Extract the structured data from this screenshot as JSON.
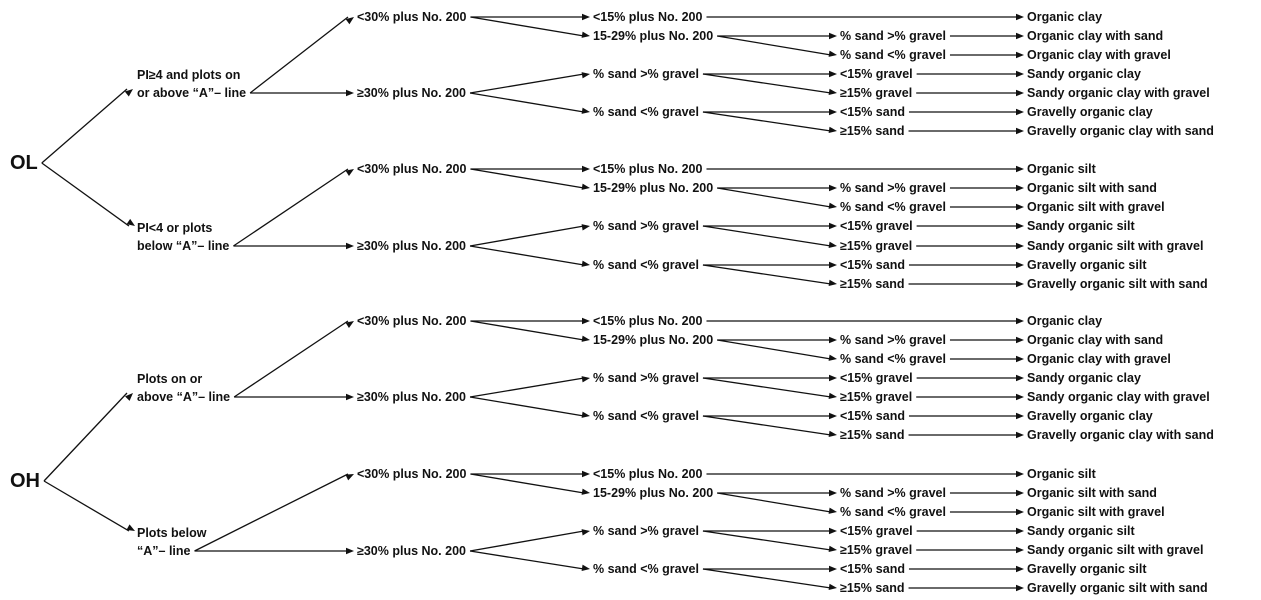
{
  "diagram": {
    "nodes": [
      {
        "id": "OL",
        "text": "OL"
      },
      {
        "id": "OH",
        "text": "OH"
      },
      {
        "id": "a1",
        "text": "PI≥4 and plots on"
      },
      {
        "id": "a1b",
        "text": "or above “A”– line"
      },
      {
        "id": "a2",
        "text": "PI<4 or plots"
      },
      {
        "id": "a2b",
        "text": "below “A”– line"
      },
      {
        "id": "a3",
        "text": "Plots on or"
      },
      {
        "id": "a3b",
        "text": "above “A”– line"
      },
      {
        "id": "a4",
        "text": "Plots below"
      },
      {
        "id": "a4b",
        "text": "“A”– line"
      },
      {
        "id": "b1",
        "text": "<30% plus No. 200"
      },
      {
        "id": "b2",
        "text": "≥30% plus No. 200"
      },
      {
        "id": "b3",
        "text": "<30% plus No. 200"
      },
      {
        "id": "b4",
        "text": "≥30% plus No. 200"
      },
      {
        "id": "b5",
        "text": "<30% plus No. 200"
      },
      {
        "id": "b6",
        "text": "≥30% plus No. 200"
      },
      {
        "id": "b7",
        "text": "<30% plus No. 200"
      },
      {
        "id": "b8",
        "text": "≥30% plus No. 200"
      },
      {
        "id": "c1",
        "text": "<15% plus No. 200"
      },
      {
        "id": "c2",
        "text": "15-29% plus No. 200"
      },
      {
        "id": "c3",
        "text": "% sand >% gravel"
      },
      {
        "id": "c4",
        "text": "% sand <% gravel"
      },
      {
        "id": "c5",
        "text": "<15% plus No. 200"
      },
      {
        "id": "c6",
        "text": "15-29% plus No. 200"
      },
      {
        "id": "c7",
        "text": "% sand >% gravel"
      },
      {
        "id": "c8",
        "text": "% sand <% gravel"
      },
      {
        "id": "c9",
        "text": "<15% plus No. 200"
      },
      {
        "id": "c10",
        "text": "15-29% plus No. 200"
      },
      {
        "id": "c11",
        "text": "% sand >% gravel"
      },
      {
        "id": "c12",
        "text": "% sand <% gravel"
      },
      {
        "id": "c13",
        "text": "<15% plus No. 200"
      },
      {
        "id": "c14",
        "text": "15-29% plus No. 200"
      },
      {
        "id": "c15",
        "text": "% sand >% gravel"
      },
      {
        "id": "c16",
        "text": "% sand <% gravel"
      },
      {
        "id": "d1",
        "text": "% sand >% gravel"
      },
      {
        "id": "d2",
        "text": "% sand <% gravel"
      },
      {
        "id": "d3",
        "text": "<15% gravel"
      },
      {
        "id": "d4",
        "text": "≥15% gravel"
      },
      {
        "id": "d5",
        "text": "<15% sand"
      },
      {
        "id": "d6",
        "text": "≥15% sand"
      },
      {
        "id": "d7",
        "text": "% sand >% gravel"
      },
      {
        "id": "d8",
        "text": "% sand <% gravel"
      },
      {
        "id": "d9",
        "text": "<15% gravel"
      },
      {
        "id": "d10",
        "text": "≥15% gravel"
      },
      {
        "id": "d11",
        "text": "<15% sand"
      },
      {
        "id": "d12",
        "text": "≥15% sand"
      },
      {
        "id": "d13",
        "text": "% sand >% gravel"
      },
      {
        "id": "d14",
        "text": "% sand <% gravel"
      },
      {
        "id": "d15",
        "text": "<15% gravel"
      },
      {
        "id": "d16",
        "text": "≥15% gravel"
      },
      {
        "id": "d17",
        "text": "<15% sand"
      },
      {
        "id": "d18",
        "text": "≥15% sand"
      },
      {
        "id": "d19",
        "text": "% sand >% gravel"
      },
      {
        "id": "d20",
        "text": "% sand <% gravel"
      },
      {
        "id": "d21",
        "text": "<15% gravel"
      },
      {
        "id": "d22",
        "text": "≥15% gravel"
      },
      {
        "id": "d23",
        "text": "<15% sand"
      },
      {
        "id": "d24",
        "text": "≥15% sand"
      },
      {
        "id": "n1",
        "text": "Organic clay"
      },
      {
        "id": "n2",
        "text": "Organic clay with sand"
      },
      {
        "id": "n3",
        "text": "Organic clay with gravel"
      },
      {
        "id": "n4",
        "text": "Sandy organic clay"
      },
      {
        "id": "n5",
        "text": "Sandy organic clay with gravel"
      },
      {
        "id": "n6",
        "text": "Gravelly organic clay"
      },
      {
        "id": "n7",
        "text": "Gravelly organic clay with sand"
      },
      {
        "id": "n8",
        "text": "Organic silt"
      },
      {
        "id": "n9",
        "text": "Organic silt with sand"
      },
      {
        "id": "n10",
        "text": "Organic silt with gravel"
      },
      {
        "id": "n11",
        "text": "Sandy organic silt"
      },
      {
        "id": "n12",
        "text": "Sandy organic silt with gravel"
      },
      {
        "id": "n13",
        "text": "Gravelly organic silt"
      },
      {
        "id": "n14",
        "text": "Gravelly organic silt with sand"
      },
      {
        "id": "n15",
        "text": "Organic clay"
      },
      {
        "id": "n16",
        "text": "Organic clay with sand"
      },
      {
        "id": "n17",
        "text": "Organic clay with gravel"
      },
      {
        "id": "n18",
        "text": "Sandy organic clay"
      },
      {
        "id": "n19",
        "text": "Sandy organic clay with gravel"
      },
      {
        "id": "n20",
        "text": "Gravelly organic clay"
      },
      {
        "id": "n21",
        "text": "Gravelly organic clay with sand"
      },
      {
        "id": "n22",
        "text": "Organic silt"
      },
      {
        "id": "n23",
        "text": "Organic silt with sand"
      },
      {
        "id": "n24",
        "text": "Organic silt with gravel"
      },
      {
        "id": "n25",
        "text": "Sandy organic silt"
      },
      {
        "id": "n26",
        "text": "Sandy organic silt with gravel"
      },
      {
        "id": "n27",
        "text": "Gravelly organic silt"
      },
      {
        "id": "n28",
        "text": "Gravelly organic silt with sand"
      }
    ],
    "edges": [
      [
        "OL",
        "a1"
      ],
      [
        "OL",
        "a2"
      ],
      [
        "OH",
        "a3"
      ],
      [
        "OH",
        "a4"
      ],
      [
        "a1",
        "b1"
      ],
      [
        "a1",
        "b2"
      ],
      [
        "a2",
        "b3"
      ],
      [
        "a2",
        "b4"
      ],
      [
        "a3",
        "b5"
      ],
      [
        "a3",
        "b6"
      ],
      [
        "a4",
        "b7"
      ],
      [
        "a4",
        "b8"
      ],
      [
        "b1",
        "c1"
      ],
      [
        "b1",
        "c2"
      ],
      [
        "b2",
        "c3"
      ],
      [
        "b2",
        "c4"
      ],
      [
        "b3",
        "c5"
      ],
      [
        "b3",
        "c6"
      ],
      [
        "b4",
        "c7"
      ],
      [
        "b4",
        "c8"
      ],
      [
        "b5",
        "c9"
      ],
      [
        "b5",
        "c10"
      ],
      [
        "b6",
        "c11"
      ],
      [
        "b6",
        "c12"
      ],
      [
        "b7",
        "c13"
      ],
      [
        "b7",
        "c14"
      ],
      [
        "b8",
        "c15"
      ],
      [
        "b8",
        "c16"
      ],
      [
        "c1",
        "n1"
      ],
      [
        "c2",
        "d1"
      ],
      [
        "c2",
        "d2"
      ],
      [
        "d1",
        "n2"
      ],
      [
        "d2",
        "n3"
      ],
      [
        "c3",
        "d3"
      ],
      [
        "c3",
        "d4"
      ],
      [
        "d3",
        "n4"
      ],
      [
        "d4",
        "n5"
      ],
      [
        "c4",
        "d5"
      ],
      [
        "c4",
        "d6"
      ],
      [
        "d5",
        "n6"
      ],
      [
        "d6",
        "n7"
      ],
      [
        "c5",
        "n8"
      ],
      [
        "c6",
        "d7"
      ],
      [
        "c6",
        "d8"
      ],
      [
        "d7",
        "n9"
      ],
      [
        "d8",
        "n10"
      ],
      [
        "c7",
        "d9"
      ],
      [
        "c7",
        "d10"
      ],
      [
        "d9",
        "n11"
      ],
      [
        "d10",
        "n12"
      ],
      [
        "c8",
        "d11"
      ],
      [
        "c8",
        "d12"
      ],
      [
        "d11",
        "n13"
      ],
      [
        "d12",
        "n14"
      ],
      [
        "c9",
        "n15"
      ],
      [
        "c10",
        "d13"
      ],
      [
        "c10",
        "d14"
      ],
      [
        "d13",
        "n16"
      ],
      [
        "d14",
        "n17"
      ],
      [
        "c11",
        "d15"
      ],
      [
        "c11",
        "d16"
      ],
      [
        "d15",
        "n18"
      ],
      [
        "d16",
        "n19"
      ],
      [
        "c12",
        "d17"
      ],
      [
        "c12",
        "d18"
      ],
      [
        "d17",
        "n20"
      ],
      [
        "d18",
        "n21"
      ],
      [
        "c13",
        "n22"
      ],
      [
        "c14",
        "d19"
      ],
      [
        "c14",
        "d20"
      ],
      [
        "d19",
        "n23"
      ],
      [
        "d20",
        "n24"
      ],
      [
        "c15",
        "d21"
      ],
      [
        "c15",
        "d22"
      ],
      [
        "d21",
        "n25"
      ],
      [
        "d22",
        "n26"
      ],
      [
        "c16",
        "d23"
      ],
      [
        "c16",
        "d24"
      ],
      [
        "d23",
        "n27"
      ],
      [
        "d24",
        "n28"
      ]
    ]
  }
}
